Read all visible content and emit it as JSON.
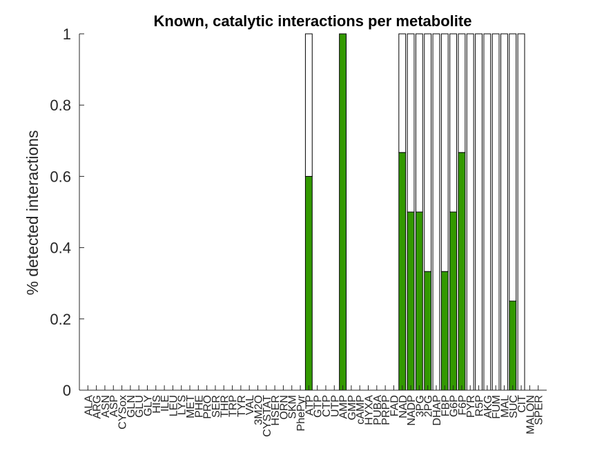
{
  "chart_data": {
    "type": "bar",
    "stacked": true,
    "title": "Known, catalytic interactions per metabolite",
    "ylabel": "% detected interactions",
    "xlabel": "",
    "ylim": [
      0,
      1
    ],
    "yticks": [
      "0",
      "0.2",
      "0.4",
      "0.6",
      "0.8",
      "1"
    ],
    "grid": false,
    "categories": [
      "ALA",
      "ARG",
      "ASN",
      "ASP",
      "CYSox",
      "GLN",
      "GLU",
      "GLY",
      "HIS",
      "ILE",
      "LEU",
      "LYS",
      "MET",
      "PHE",
      "PRO",
      "SER",
      "THR",
      "TRP",
      "TYR",
      "VAL",
      "3M2O",
      "CYSTAT",
      "HSER",
      "ORN",
      "SKM",
      "PhePyr",
      "ATP",
      "GTP",
      "CTP",
      "UTP",
      "AMP",
      "GMP",
      "cAMP",
      "HYXA",
      "PUBA",
      "PRPP",
      "FAD",
      "NAD",
      "NADP",
      "3PG",
      "2PG",
      "DHAP",
      "FBP",
      "G6P",
      "F6P",
      "PYR",
      "R5P",
      "AKG",
      "FUM",
      "MAL",
      "SUC",
      "CIT",
      "MALON",
      "SPER"
    ],
    "series": [
      {
        "color": "#339900",
        "values": [
          0,
          0,
          0,
          0,
          0,
          0,
          0,
          0,
          0,
          0,
          0,
          0,
          0,
          0,
          0,
          0,
          0,
          0,
          0,
          0,
          0,
          0,
          0,
          0,
          0,
          0,
          0.6,
          0,
          0,
          0,
          1,
          0,
          0,
          0,
          0,
          0,
          0,
          0.667,
          0.5,
          0.5,
          0.333,
          0,
          0.333,
          0.5,
          0.667,
          0,
          0,
          0,
          0,
          0,
          0.25,
          0,
          0,
          0
        ]
      },
      {
        "color": "#ffffff",
        "values": [
          0,
          0,
          0,
          0,
          0,
          0,
          0,
          0,
          0,
          0,
          0,
          0,
          0,
          0,
          0,
          0,
          0,
          0,
          0,
          0,
          0,
          0,
          0,
          0,
          0,
          0,
          0.4,
          0,
          0,
          0,
          0,
          0,
          0,
          0,
          0,
          0,
          0,
          0.333,
          0.5,
          0.5,
          0.667,
          1,
          0.667,
          0.5,
          0.333,
          1,
          1,
          1,
          1,
          1,
          0.75,
          1,
          0,
          0
        ]
      }
    ]
  }
}
